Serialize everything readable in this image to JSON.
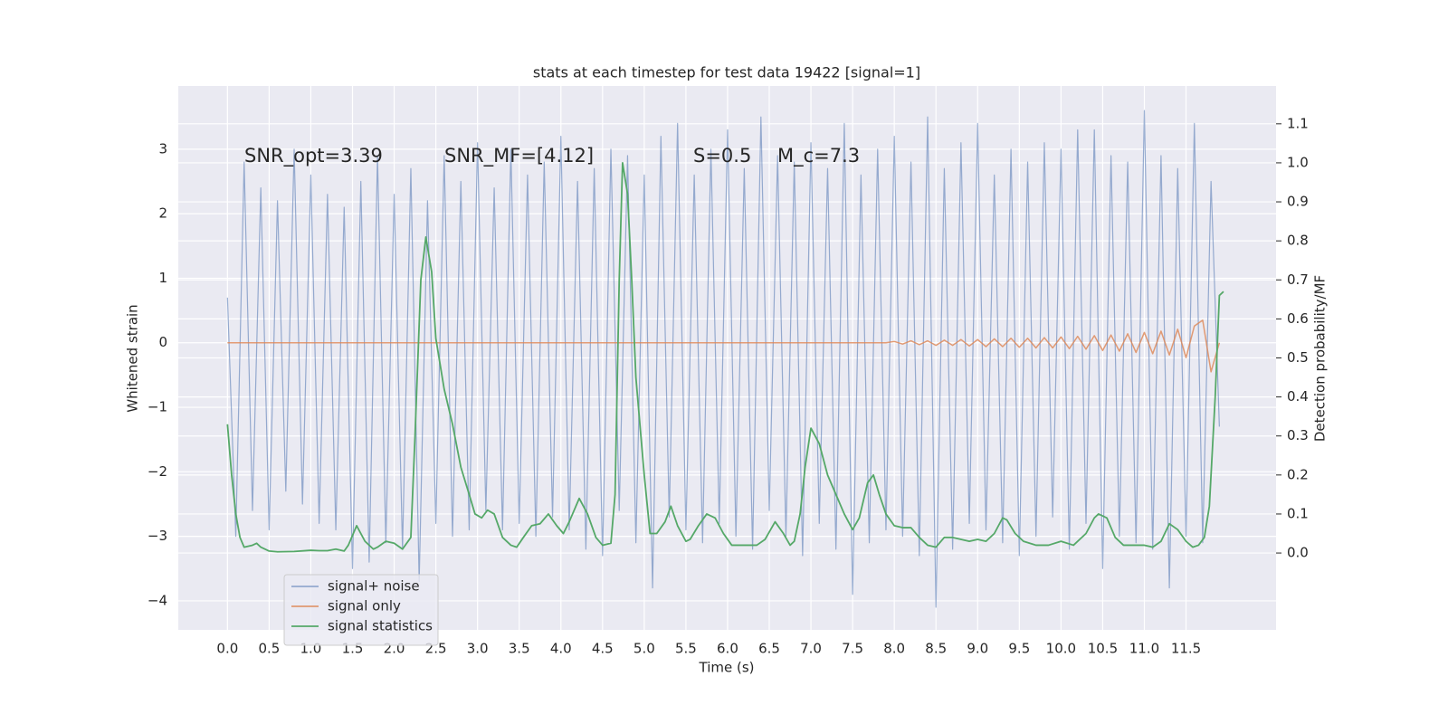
{
  "chart_data": {
    "type": "line",
    "title": "stats at each timestep for test data 19422 [signal=1]",
    "xlabel": "Time (s)",
    "ylabel": "Whitened strain",
    "y2label": "Detection probability/MF",
    "annotations": [
      "SNR_opt=3.39",
      "SNR_MF=[4.12]",
      "S=0.5",
      "M_c=7.3"
    ],
    "grid": true,
    "legend": "lower left",
    "xlim": [
      -0.59,
      12.58
    ],
    "ylim": [
      -4.45,
      3.98
    ],
    "y2lim": [
      -0.197,
      1.197
    ],
    "xticks": [
      {
        "value": 0,
        "label": "0.0"
      },
      0.5,
      {
        "value": 1,
        "label": "1.0"
      },
      1.5,
      {
        "value": 2,
        "label": "2.0"
      },
      2.5,
      {
        "value": 3,
        "label": "3.0"
      },
      3.5,
      {
        "value": 4,
        "label": "4.0"
      },
      4.5,
      {
        "value": 5,
        "label": "5.0"
      },
      5.5,
      {
        "value": 6,
        "label": "6.0"
      },
      6.5,
      {
        "value": 7,
        "label": "7.0"
      },
      7.5,
      {
        "value": 8,
        "label": "8.0"
      },
      8.5,
      {
        "value": 9,
        "label": "9.0"
      },
      9.5,
      {
        "value": 10,
        "label": "10.0"
      },
      10.5,
      {
        "value": 11,
        "label": "11.0"
      },
      11.5
    ],
    "yticks": [
      {
        "value": -4,
        "label": "−4"
      },
      {
        "value": -3,
        "label": "−3"
      },
      {
        "value": -2,
        "label": "−2"
      },
      {
        "value": -1,
        "label": "−1"
      },
      0,
      1,
      2,
      3
    ],
    "y2ticks": [
      {
        "value": 0,
        "label": "0.0"
      },
      0.1,
      0.2,
      0.3,
      0.4,
      0.5,
      0.6,
      0.7,
      0.8,
      0.9,
      {
        "value": 1,
        "label": "1.0"
      },
      1.1
    ],
    "x": [
      0.0,
      0.1,
      0.2,
      0.3,
      0.4,
      0.5,
      0.6,
      0.7,
      0.8,
      0.9,
      1.0,
      1.1,
      1.2,
      1.3,
      1.4,
      1.5,
      1.6,
      1.7,
      1.8,
      1.9,
      2.0,
      2.1,
      2.2,
      2.3,
      2.4,
      2.5,
      2.6,
      2.7,
      2.8,
      2.9,
      3.0,
      3.1,
      3.2,
      3.3,
      3.4,
      3.5,
      3.6,
      3.7,
      3.8,
      3.9,
      4.0,
      4.1,
      4.2,
      4.3,
      4.4,
      4.5,
      4.6,
      4.7,
      4.8,
      4.9,
      5.0,
      5.1,
      5.2,
      5.3,
      5.4,
      5.5,
      5.6,
      5.7,
      5.8,
      5.9,
      6.0,
      6.1,
      6.2,
      6.3,
      6.4,
      6.5,
      6.6,
      6.7,
      6.8,
      6.9,
      7.0,
      7.1,
      7.2,
      7.3,
      7.4,
      7.5,
      7.6,
      7.7,
      7.8,
      7.9,
      8.0,
      8.1,
      8.2,
      8.3,
      8.4,
      8.5,
      8.6,
      8.7,
      8.8,
      8.9,
      9.0,
      9.1,
      9.2,
      9.3,
      9.4,
      9.5,
      9.6,
      9.7,
      9.8,
      9.9,
      10.0,
      10.1,
      10.2,
      10.3,
      10.4,
      10.5,
      10.6,
      10.7,
      10.8,
      10.9,
      11.0,
      11.1,
      11.2,
      11.3,
      11.4,
      11.5,
      11.6,
      11.7,
      11.8,
      11.9
    ],
    "series": [
      {
        "name": "signal+ noise",
        "color": "#4c72b0",
        "values": [
          0.7,
          -3.0,
          2.8,
          -2.6,
          2.4,
          -2.9,
          2.2,
          -2.3,
          3.0,
          -2.5,
          2.6,
          -2.8,
          2.3,
          -2.9,
          2.1,
          -3.5,
          2.5,
          -3.4,
          2.9,
          -3.1,
          2.3,
          -3.2,
          2.7,
          -3.7,
          2.2,
          -2.8,
          2.9,
          -3.0,
          2.5,
          -2.9,
          3.1,
          -2.6,
          2.4,
          -2.9,
          3.0,
          -2.8,
          2.6,
          -3.0,
          2.8,
          -2.7,
          3.2,
          -2.9,
          2.5,
          -3.2,
          2.7,
          -3.3,
          3.0,
          -2.6,
          2.9,
          -3.1,
          2.6,
          -3.8,
          3.2,
          -2.7,
          3.4,
          -2.9,
          2.6,
          -3.1,
          3.0,
          -2.8,
          3.3,
          -3.0,
          2.7,
          -3.2,
          3.5,
          -2.6,
          2.9,
          -3.0,
          2.8,
          -3.3,
          3.1,
          -2.8,
          2.7,
          -3.2,
          3.4,
          -3.9,
          2.6,
          -3.1,
          3.0,
          -2.9,
          3.2,
          -3.0,
          2.8,
          -3.3,
          3.5,
          -4.1,
          2.7,
          -3.2,
          3.1,
          -2.8,
          3.4,
          -2.9,
          2.6,
          -3.1,
          3.0,
          -3.3,
          2.8,
          -3.0,
          3.1,
          -2.7,
          3.0,
          -3.2,
          3.3,
          -2.8,
          3.3,
          -3.5,
          2.9,
          -3.0,
          2.8,
          -3.1,
          3.6,
          -3.2,
          2.9,
          -3.8,
          2.7,
          -3.0,
          3.4,
          -3.1,
          2.5,
          -1.3
        ]
      },
      {
        "name": "signal only",
        "color": "#dd8452",
        "values": [
          0,
          0,
          0,
          0,
          0,
          0,
          0,
          0,
          0,
          0,
          0,
          0,
          0,
          0,
          0,
          0,
          0,
          0,
          0,
          0,
          0,
          0,
          0,
          0,
          0,
          0,
          0,
          0,
          0,
          0,
          0,
          0,
          0,
          0,
          0,
          0,
          0,
          0,
          0,
          0,
          0,
          0,
          0,
          0,
          0,
          0,
          0,
          0,
          0,
          0,
          0,
          0,
          0,
          0,
          0,
          0,
          0,
          0,
          0,
          0,
          0,
          0,
          0,
          0,
          0,
          0,
          0,
          0,
          0,
          0,
          0,
          0,
          0,
          0,
          0,
          0,
          0,
          0,
          0,
          0,
          0.02,
          -0.02,
          0.03,
          -0.03,
          0.03,
          -0.04,
          0.04,
          -0.04,
          0.05,
          -0.05,
          0.05,
          -0.06,
          0.06,
          -0.06,
          0.07,
          -0.07,
          0.07,
          -0.08,
          0.08,
          -0.08,
          0.09,
          -0.09,
          0.1,
          -0.1,
          0.11,
          -0.12,
          0.12,
          -0.13,
          0.14,
          -0.15,
          0.16,
          -0.17,
          0.18,
          -0.19,
          0.21,
          -0.23,
          0.26,
          0.35,
          -0.45,
          0
        ]
      },
      {
        "name": "signal statistics",
        "color": "#55a868",
        "axis": "y2",
        "x": [
          0.0,
          0.05,
          0.1,
          0.15,
          0.2,
          0.3,
          0.35,
          0.4,
          0.5,
          0.6,
          0.8,
          1.0,
          1.1,
          1.2,
          1.3,
          1.4,
          1.45,
          1.55,
          1.65,
          1.75,
          1.8,
          1.9,
          2.0,
          2.1,
          2.2,
          2.25,
          2.32,
          2.38,
          2.45,
          2.5,
          2.6,
          2.7,
          2.8,
          2.9,
          2.97,
          3.05,
          3.12,
          3.2,
          3.3,
          3.4,
          3.47,
          3.55,
          3.65,
          3.75,
          3.85,
          3.95,
          4.03,
          4.1,
          4.22,
          4.32,
          4.42,
          4.5,
          4.6,
          4.65,
          4.7,
          4.74,
          4.8,
          4.85,
          4.9,
          5.0,
          5.07,
          5.15,
          5.25,
          5.32,
          5.4,
          5.5,
          5.55,
          5.65,
          5.75,
          5.85,
          5.95,
          6.05,
          6.2,
          6.35,
          6.45,
          6.57,
          6.67,
          6.75,
          6.8,
          6.87,
          6.93,
          7.0,
          7.1,
          7.2,
          7.3,
          7.4,
          7.5,
          7.58,
          7.68,
          7.75,
          7.82,
          7.9,
          8.0,
          8.1,
          8.2,
          8.3,
          8.4,
          8.5,
          8.6,
          8.7,
          8.8,
          8.9,
          9.0,
          9.1,
          9.2,
          9.3,
          9.35,
          9.45,
          9.55,
          9.7,
          9.85,
          10.0,
          10.15,
          10.3,
          10.4,
          10.45,
          10.55,
          10.65,
          10.75,
          10.9,
          11.0,
          11.1,
          11.2,
          11.3,
          11.4,
          11.5,
          11.58,
          11.65,
          11.72,
          11.78,
          11.85,
          11.9,
          11.95
        ],
        "values": [
          0.33,
          0.2,
          0.1,
          0.04,
          0.015,
          0.02,
          0.025,
          0.015,
          0.005,
          0.003,
          0.004,
          0.007,
          0.006,
          0.006,
          0.01,
          0.005,
          0.02,
          0.07,
          0.03,
          0.01,
          0.015,
          0.03,
          0.025,
          0.01,
          0.04,
          0.3,
          0.7,
          0.81,
          0.72,
          0.55,
          0.42,
          0.33,
          0.22,
          0.15,
          0.1,
          0.09,
          0.11,
          0.1,
          0.04,
          0.02,
          0.015,
          0.04,
          0.07,
          0.075,
          0.1,
          0.07,
          0.05,
          0.08,
          0.14,
          0.1,
          0.04,
          0.02,
          0.025,
          0.15,
          0.7,
          1.0,
          0.92,
          0.7,
          0.45,
          0.2,
          0.05,
          0.05,
          0.08,
          0.12,
          0.07,
          0.03,
          0.035,
          0.07,
          0.1,
          0.09,
          0.05,
          0.02,
          0.02,
          0.02,
          0.035,
          0.08,
          0.05,
          0.02,
          0.03,
          0.1,
          0.22,
          0.32,
          0.28,
          0.2,
          0.15,
          0.1,
          0.06,
          0.09,
          0.18,
          0.2,
          0.15,
          0.1,
          0.07,
          0.065,
          0.065,
          0.04,
          0.02,
          0.015,
          0.04,
          0.04,
          0.035,
          0.03,
          0.035,
          0.03,
          0.05,
          0.09,
          0.085,
          0.05,
          0.03,
          0.02,
          0.02,
          0.03,
          0.02,
          0.05,
          0.09,
          0.1,
          0.09,
          0.04,
          0.02,
          0.02,
          0.02,
          0.015,
          0.03,
          0.075,
          0.06,
          0.03,
          0.015,
          0.02,
          0.04,
          0.12,
          0.4,
          0.66,
          0.67
        ]
      }
    ]
  }
}
